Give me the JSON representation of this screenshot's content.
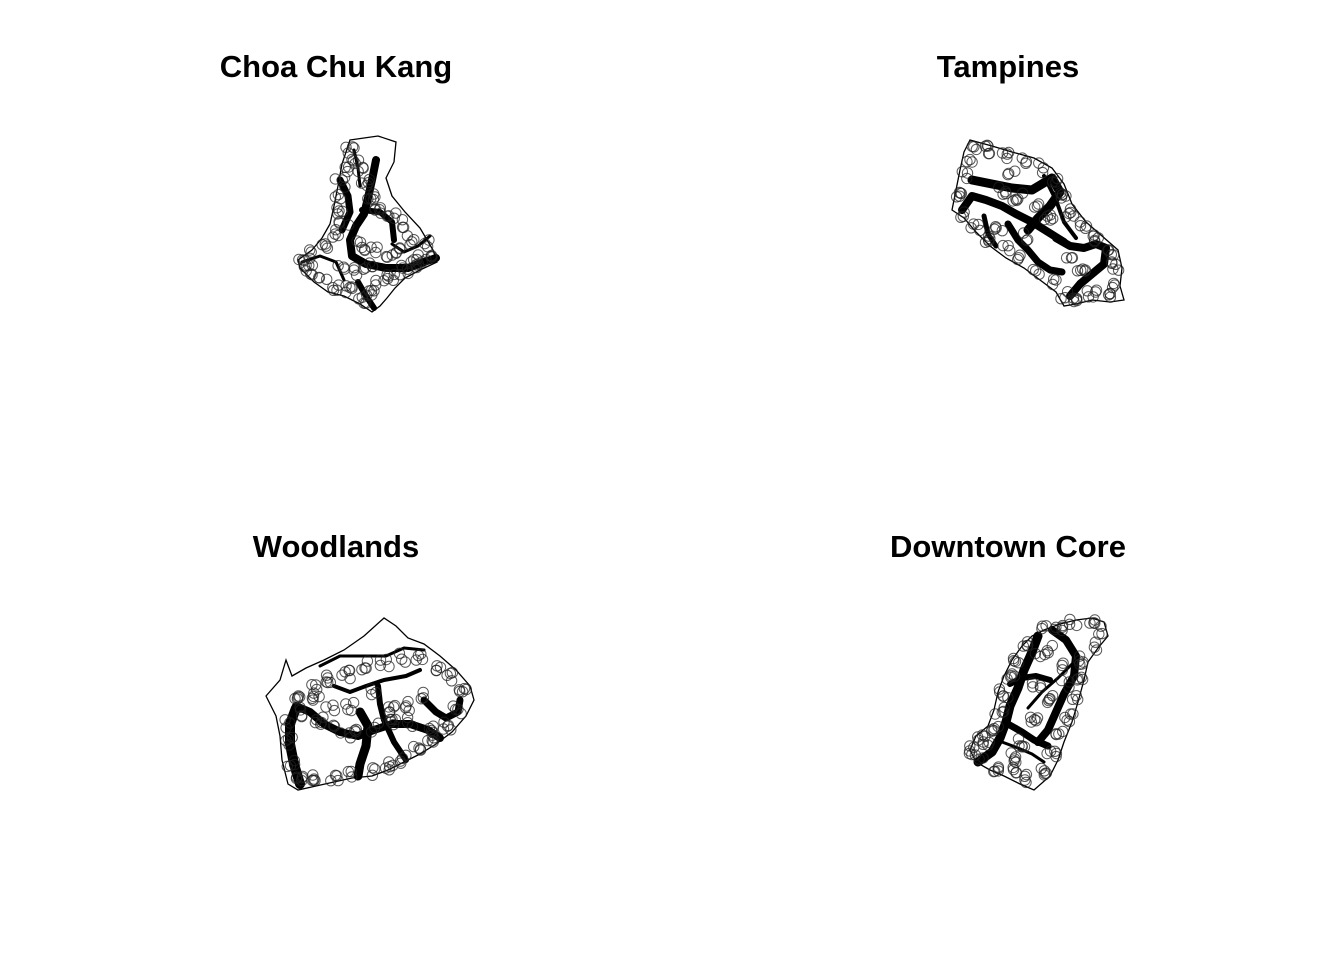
{
  "figure": {
    "background": "#ffffff",
    "ink_color": "#000000",
    "point_color": "#222222"
  },
  "panels": [
    {
      "id": "choa-chu-kang",
      "title": "Choa Chu Kang"
    },
    {
      "id": "tampines",
      "title": "Tampines"
    },
    {
      "id": "woodlands",
      "title": "Woodlands"
    },
    {
      "id": "downtown-core",
      "title": "Downtown Core"
    }
  ]
}
